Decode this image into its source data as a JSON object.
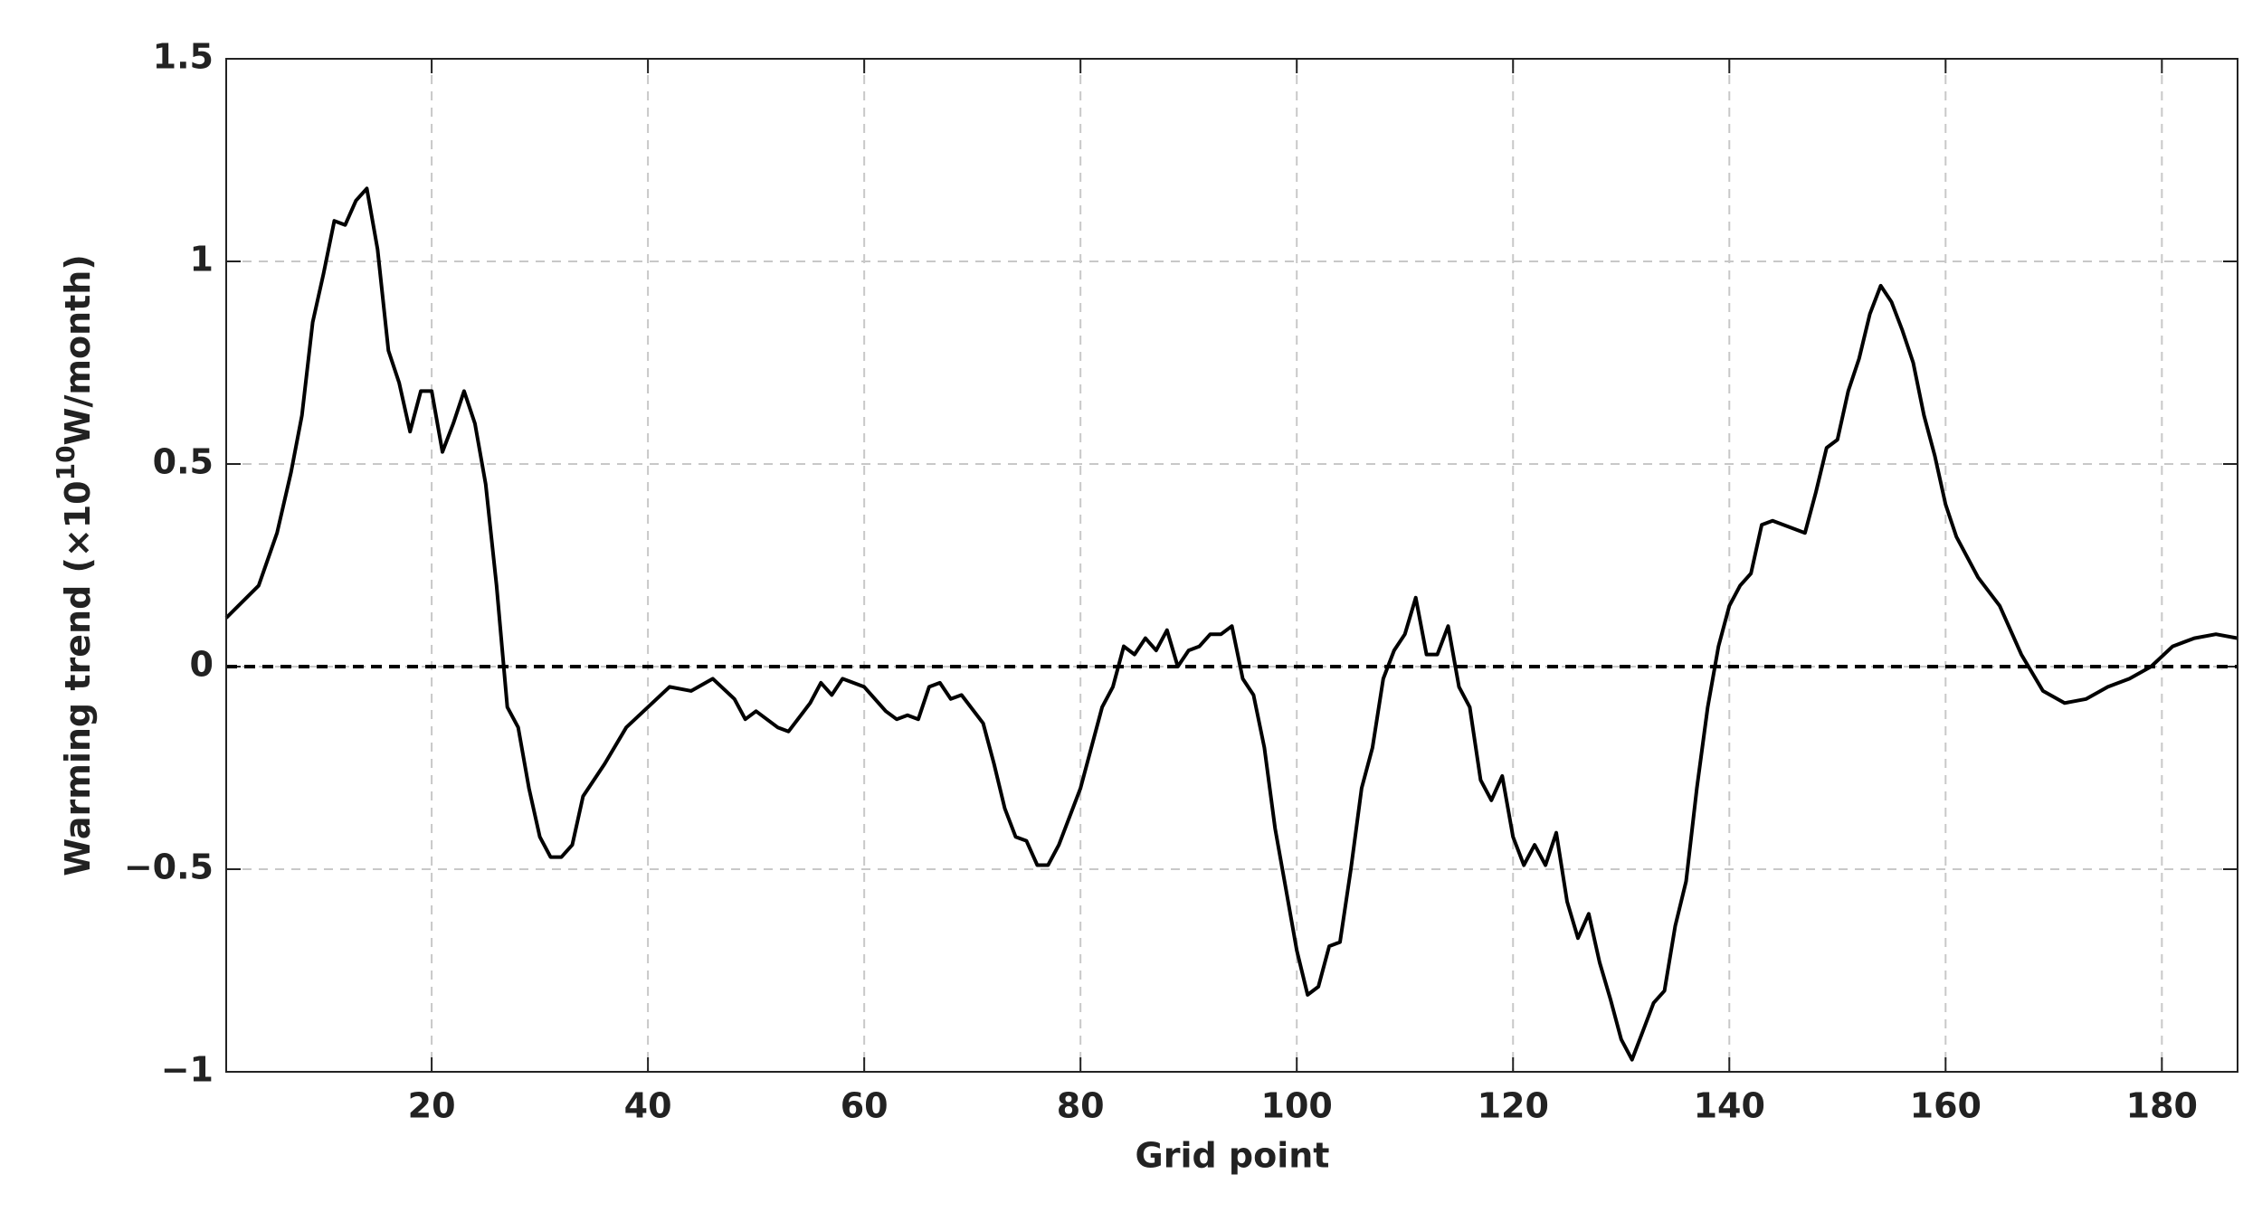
{
  "chart_data": {
    "type": "line",
    "color": "#000000",
    "grid": true,
    "reference_line": 0,
    "xlabel": "Grid point",
    "ylabel_parts": [
      "Warming trend (×10",
      "10",
      "W/month)"
    ],
    "xlim": [
      1,
      187
    ],
    "xticks": [
      20,
      40,
      60,
      80,
      100,
      120,
      140,
      160,
      180
    ],
    "ylim": [
      -1,
      1.5
    ],
    "yticks": [
      {
        "value": -1,
        "label": "−1"
      },
      {
        "value": -0.5,
        "label": "−0.5"
      },
      0,
      0.5,
      1,
      1.5
    ],
    "x": [
      1,
      4,
      5.7,
      7,
      8,
      9,
      10,
      11,
      12,
      13,
      14,
      15,
      16,
      17,
      18,
      19,
      20,
      21,
      22,
      23,
      24,
      25,
      26,
      27,
      28,
      29,
      30,
      31,
      32,
      33,
      34,
      36,
      38,
      40,
      42,
      44,
      46,
      48,
      49,
      50,
      52,
      53,
      55,
      56,
      57,
      58,
      60,
      62,
      63,
      64,
      65,
      66,
      67,
      68,
      69,
      71,
      72,
      73,
      74,
      75,
      76,
      77,
      78,
      80,
      82,
      83,
      84,
      85,
      86,
      87,
      88,
      89,
      90,
      91,
      92,
      93,
      94,
      95,
      96,
      97,
      98,
      99,
      100,
      101,
      102,
      103,
      104,
      105,
      106,
      107,
      108,
      109,
      110,
      111,
      112,
      113,
      114,
      115,
      116,
      117,
      118,
      119,
      120,
      121,
      122,
      123,
      124,
      125,
      126,
      127,
      128,
      129,
      130,
      131,
      132,
      133,
      134,
      135,
      136,
      137,
      138,
      139,
      140,
      141,
      142,
      143,
      144,
      146,
      147,
      148,
      149,
      150,
      151,
      152,
      153,
      154,
      155,
      156,
      157,
      158,
      159,
      160,
      161,
      163,
      165,
      167,
      169,
      171,
      173,
      175,
      177,
      179,
      181,
      183,
      185,
      187
    ],
    "values": [
      0.12,
      0.2,
      0.33,
      0.48,
      0.62,
      0.85,
      0.97,
      1.1,
      1.09,
      1.15,
      1.18,
      1.03,
      0.78,
      0.7,
      0.58,
      0.68,
      0.68,
      0.53,
      0.6,
      0.68,
      0.6,
      0.45,
      0.2,
      -0.1,
      -0.15,
      -0.3,
      -0.42,
      -0.47,
      -0.47,
      -0.44,
      -0.32,
      -0.24,
      -0.15,
      -0.1,
      -0.05,
      -0.06,
      -0.03,
      -0.08,
      -0.13,
      -0.11,
      -0.15,
      -0.16,
      -0.09,
      -0.04,
      -0.07,
      -0.03,
      -0.05,
      -0.11,
      -0.13,
      -0.12,
      -0.13,
      -0.05,
      -0.04,
      -0.08,
      -0.07,
      -0.14,
      -0.24,
      -0.35,
      -0.42,
      -0.43,
      -0.49,
      -0.49,
      -0.44,
      -0.3,
      -0.1,
      -0.05,
      0.05,
      0.03,
      0.07,
      0.04,
      0.09,
      0.0,
      0.04,
      0.05,
      0.08,
      0.08,
      0.1,
      -0.03,
      -0.07,
      -0.2,
      -0.4,
      -0.55,
      -0.7,
      -0.81,
      -0.79,
      -0.69,
      -0.68,
      -0.5,
      -0.3,
      -0.2,
      -0.03,
      0.04,
      0.08,
      0.17,
      0.03,
      0.03,
      0.1,
      -0.05,
      -0.1,
      -0.28,
      -0.33,
      -0.27,
      -0.42,
      -0.49,
      -0.44,
      -0.49,
      -0.41,
      -0.58,
      -0.67,
      -0.61,
      -0.73,
      -0.82,
      -0.92,
      -0.97,
      -0.9,
      -0.83,
      -0.8,
      -0.64,
      -0.53,
      -0.3,
      -0.1,
      0.05,
      0.15,
      0.2,
      0.23,
      0.35,
      0.36,
      0.34,
      0.33,
      0.43,
      0.54,
      0.56,
      0.68,
      0.76,
      0.87,
      0.94,
      0.9,
      0.83,
      0.75,
      0.62,
      0.52,
      0.4,
      0.32,
      0.22,
      0.15,
      0.03,
      -0.06,
      -0.09,
      -0.08,
      -0.05,
      -0.03,
      0.0,
      0.05,
      0.07,
      0.08,
      0.07
    ]
  }
}
